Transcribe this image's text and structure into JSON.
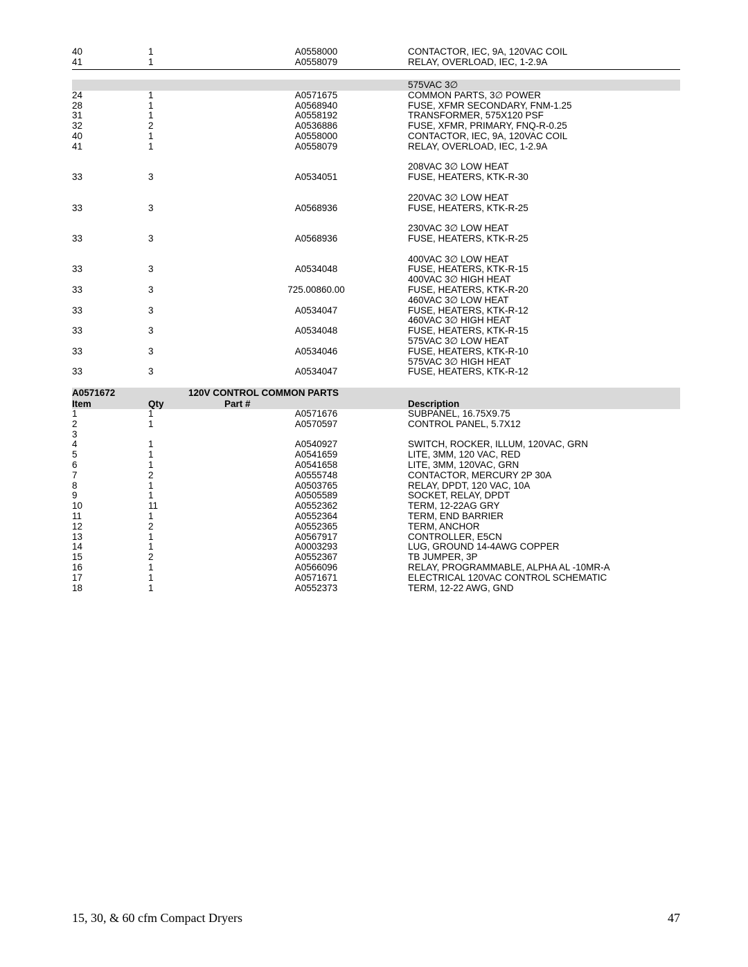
{
  "section1_rows": [
    {
      "item": "40",
      "qty": "1",
      "part": "A0558000",
      "desc": "CONTACTOR, IEC, 9A, 120VAC COIL"
    },
    {
      "item": "41",
      "qty": "1",
      "part": "A0558079",
      "desc": "RELAY, OVERLOAD, IEC, 1-2.9A",
      "hr": true
    }
  ],
  "section2_header_desc": "575VAC 3∅",
  "section2_rows": [
    {
      "item": "24",
      "qty": "1",
      "part": "A0571675",
      "desc": "COMMON PARTS, 3∅ POWER"
    },
    {
      "item": "28",
      "qty": "1",
      "part": "A0568940",
      "desc": "FUSE, XFMR SECONDARY, FNM-1.25"
    },
    {
      "item": "31",
      "qty": "1",
      "part": "A0558192",
      "desc": "TRANSFORMER, 575X120 PSF"
    },
    {
      "item": "32",
      "qty": "2",
      "part": "A0536886",
      "desc": "FUSE, XFMR, PRIMARY, FNQ-R-0.25"
    },
    {
      "item": "40",
      "qty": "1",
      "part": "A0558000",
      "desc": "CONTACTOR, IEC, 9A, 120VAC COIL"
    },
    {
      "item": "41",
      "qty": "1",
      "part": "A0558079",
      "desc": "RELAY, OVERLOAD, IEC, 1-2.9A"
    },
    {
      "spacer": true
    },
    {
      "item": "",
      "qty": "",
      "part": "",
      "desc": "208VAC 3∅ LOW HEAT"
    },
    {
      "item": "33",
      "qty": "3",
      "part": "A0534051",
      "desc": "FUSE, HEATERS, KTK-R-30"
    },
    {
      "spacer": true
    },
    {
      "item": "",
      "qty": "",
      "part": "",
      "desc": "220VAC 3∅ LOW HEAT"
    },
    {
      "item": "33",
      "qty": "3",
      "part": "A0568936",
      "desc": "FUSE, HEATERS, KTK-R-25"
    },
    {
      "spacer": true
    },
    {
      "item": "",
      "qty": "",
      "part": "",
      "desc": "230VAC 3∅ LOW HEAT"
    },
    {
      "item": "33",
      "qty": "3",
      "part": "A0568936",
      "desc": "FUSE, HEATERS, KTK-R-25"
    },
    {
      "spacer": true
    },
    {
      "item": "",
      "qty": "",
      "part": "",
      "desc": "400VAC 3∅ LOW HEAT"
    },
    {
      "item": "33",
      "qty": "3",
      "part": "A0534048",
      "desc": "FUSE, HEATERS, KTK-R-15"
    },
    {
      "item": "",
      "qty": "",
      "part": "",
      "desc": "400VAC 3∅ HIGH HEAT"
    },
    {
      "item": "33",
      "qty": "3",
      "part": "725.00860.00",
      "desc": "FUSE, HEATERS, KTK-R-20"
    },
    {
      "item": "",
      "qty": "",
      "part": "",
      "desc": "460VAC 3∅ LOW HEAT"
    },
    {
      "item": "33",
      "qty": "3",
      "part": "A0534047",
      "desc": "FUSE, HEATERS, KTK-R-12"
    },
    {
      "item": "",
      "qty": "",
      "part": "",
      "desc": "460VAC 3∅ HIGH HEAT"
    },
    {
      "item": "33",
      "qty": "3",
      "part": "A0534048",
      "desc": "FUSE, HEATERS, KTK-R-15"
    },
    {
      "item": "",
      "qty": "",
      "part": "",
      "desc": "575VAC 3∅ LOW HEAT"
    },
    {
      "item": "33",
      "qty": "3",
      "part": "A0534046",
      "desc": "FUSE, HEATERS, KTK-R-10"
    },
    {
      "item": "",
      "qty": "",
      "part": "",
      "desc": "575VAC 3∅ HIGH HEAT"
    },
    {
      "item": "33",
      "qty": "3",
      "part": "A0534047",
      "desc": "FUSE, HEATERS, KTK-R-12"
    }
  ],
  "section3_header_code": "A0571672",
  "section3_header_title": "120V CONTROL COMMON PARTS",
  "section3_col_item": "Item",
  "section3_col_qty": "Qty",
  "section3_col_part": "Part #",
  "section3_col_desc": "Description",
  "section3_rows": [
    {
      "item": "1",
      "qty": "1",
      "part": "A0571676",
      "desc": "SUBPANEL, 16.75X9.75"
    },
    {
      "item": "2",
      "qty": "1",
      "part": "A0570597",
      "desc": "CONTROL PANEL, 5.7X12"
    },
    {
      "item": "3",
      "qty": "",
      "part": "",
      "desc": ""
    },
    {
      "item": "4",
      "qty": "1",
      "part": "A0540927",
      "desc": "SWITCH, ROCKER, ILLUM, 120VAC, GRN"
    },
    {
      "item": "5",
      "qty": "1",
      "part": "A0541659",
      "desc": "LITE, 3MM, 120 VAC, RED"
    },
    {
      "item": "6",
      "qty": "1",
      "part": "A0541658",
      "desc": "LITE, 3MM, 120VAC, GRN"
    },
    {
      "item": "7",
      "qty": "2",
      "part": "A0555748",
      "desc": "CONTACTOR, MERCURY 2P 30A"
    },
    {
      "item": "8",
      "qty": "1",
      "part": "A0503765",
      "desc": "RELAY, DPDT, 120 VAC, 10A"
    },
    {
      "item": "9",
      "qty": "1",
      "part": "A0505589",
      "desc": "SOCKET, RELAY, DPDT"
    },
    {
      "item": "10",
      "qty": "11",
      "part": "A0552362",
      "desc": "TERM, 12-22AG GRY"
    },
    {
      "item": "11",
      "qty": "1",
      "part": "A0552364",
      "desc": "TERM, END BARRIER"
    },
    {
      "item": "12",
      "qty": "2",
      "part": "A0552365",
      "desc": "TERM, ANCHOR"
    },
    {
      "item": "13",
      "qty": "1",
      "part": "A0567917",
      "desc": "CONTROLLER, E5CN"
    },
    {
      "item": "14",
      "qty": "1",
      "part": "A0003293",
      "desc": "LUG, GROUND 14-4AWG COPPER"
    },
    {
      "item": "15",
      "qty": "2",
      "part": "A0552367",
      "desc": "TB JUMPER, 3P"
    },
    {
      "item": "16",
      "qty": "1",
      "part": "A0566096",
      "desc": "RELAY, PROGRAMMABLE, ALPHA AL -10MR-A"
    },
    {
      "item": "17",
      "qty": "1",
      "part": "A0571671",
      "desc": "ELECTRICAL 120VAC CONTROL SCHEMATIC"
    },
    {
      "item": "18",
      "qty": "1",
      "part": "A0552373",
      "desc": "TERM, 12-22 AWG, GND"
    }
  ],
  "footer_text": "15, 30, & 60 cfm Compact Dryers",
  "footer_page": "47"
}
